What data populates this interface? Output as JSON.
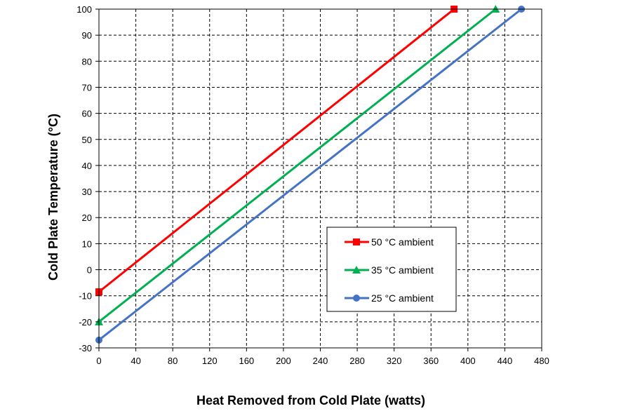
{
  "chart_data": {
    "type": "line",
    "xlabel": "Heat Removed from Cold Plate (watts)",
    "ylabel": "Cold Plate Temperature (°C)",
    "xlim": [
      0,
      480
    ],
    "ylim": [
      -30,
      100
    ],
    "xticks": [
      0,
      40,
      80,
      120,
      160,
      200,
      240,
      280,
      320,
      360,
      400,
      440,
      480
    ],
    "yticks": [
      -30,
      -20,
      -10,
      0,
      10,
      20,
      30,
      40,
      50,
      60,
      70,
      80,
      90,
      100
    ],
    "grid": true,
    "legend_position": "center-right",
    "series": [
      {
        "name": "50 °C ambient",
        "color": "#ff0000",
        "marker": "square",
        "x": [
          0,
          385
        ],
        "y": [
          -8.5,
          100
        ]
      },
      {
        "name": "35 °C ambient",
        "color": "#00b050",
        "marker": "triangle",
        "x": [
          0,
          430
        ],
        "y": [
          -20,
          100
        ]
      },
      {
        "name": "25 °C ambient",
        "color": "#4472c4",
        "marker": "circle",
        "x": [
          0,
          458
        ],
        "y": [
          -27,
          100
        ]
      }
    ]
  }
}
